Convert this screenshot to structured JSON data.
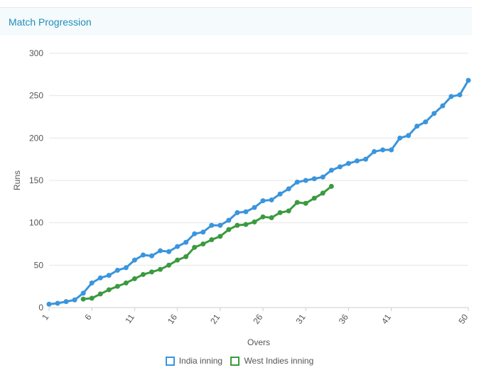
{
  "panel": {
    "title": "Match Progression"
  },
  "colors": {
    "india": "#3a95dd",
    "west_indies": "#3b9a3f",
    "grid": "#e6e6e6",
    "axis": "#cccccc"
  },
  "chart_data": {
    "type": "line",
    "title": "",
    "xlabel": "Overs",
    "ylabel": "Runs",
    "ylim": [
      0,
      300
    ],
    "xlim": [
      1,
      50
    ],
    "yticks": [
      "0",
      "50",
      "100",
      "150",
      "200",
      "250",
      "300"
    ],
    "xticks": [
      "1",
      "6",
      "11",
      "16",
      "21",
      "26",
      "31",
      "36",
      "41",
      "50"
    ],
    "grid": true,
    "legend_position": "bottom",
    "series": [
      {
        "name": "India inning",
        "x": [
          1,
          2,
          3,
          4,
          5,
          6,
          7,
          8,
          9,
          10,
          11,
          12,
          13,
          14,
          15,
          16,
          17,
          18,
          19,
          20,
          21,
          22,
          23,
          24,
          25,
          26,
          27,
          28,
          29,
          30,
          31,
          32,
          33,
          34,
          35,
          36,
          37,
          38,
          39,
          40,
          41,
          42,
          43,
          44,
          45,
          46,
          47,
          48,
          49,
          50
        ],
        "values": [
          4,
          5,
          7,
          9,
          17,
          29,
          35,
          38,
          44,
          47,
          56,
          62,
          61,
          67,
          66,
          72,
          77,
          87,
          89,
          97,
          97,
          103,
          112,
          113,
          118,
          126,
          127,
          134,
          140,
          148,
          150,
          152,
          154,
          162,
          166,
          170,
          173,
          175,
          184,
          186,
          186,
          200,
          203,
          214,
          219,
          229,
          238,
          249,
          251,
          268
        ]
      },
      {
        "name": "West Indies inning",
        "x": [
          5,
          6,
          7,
          8,
          9,
          10,
          11,
          12,
          13,
          14,
          15,
          16,
          17,
          18,
          19,
          20,
          21,
          22,
          23,
          24,
          25,
          26,
          27,
          28,
          29,
          30,
          31,
          32,
          33,
          34
        ],
        "values": [
          10,
          11,
          16,
          21,
          25,
          29,
          34,
          39,
          42,
          45,
          50,
          56,
          60,
          71,
          75,
          80,
          84,
          92,
          97,
          98,
          101,
          107,
          106,
          112,
          114,
          124,
          123,
          129,
          135,
          143
        ]
      }
    ]
  },
  "legend": {
    "items": [
      "India inning",
      "West Indies inning"
    ]
  }
}
